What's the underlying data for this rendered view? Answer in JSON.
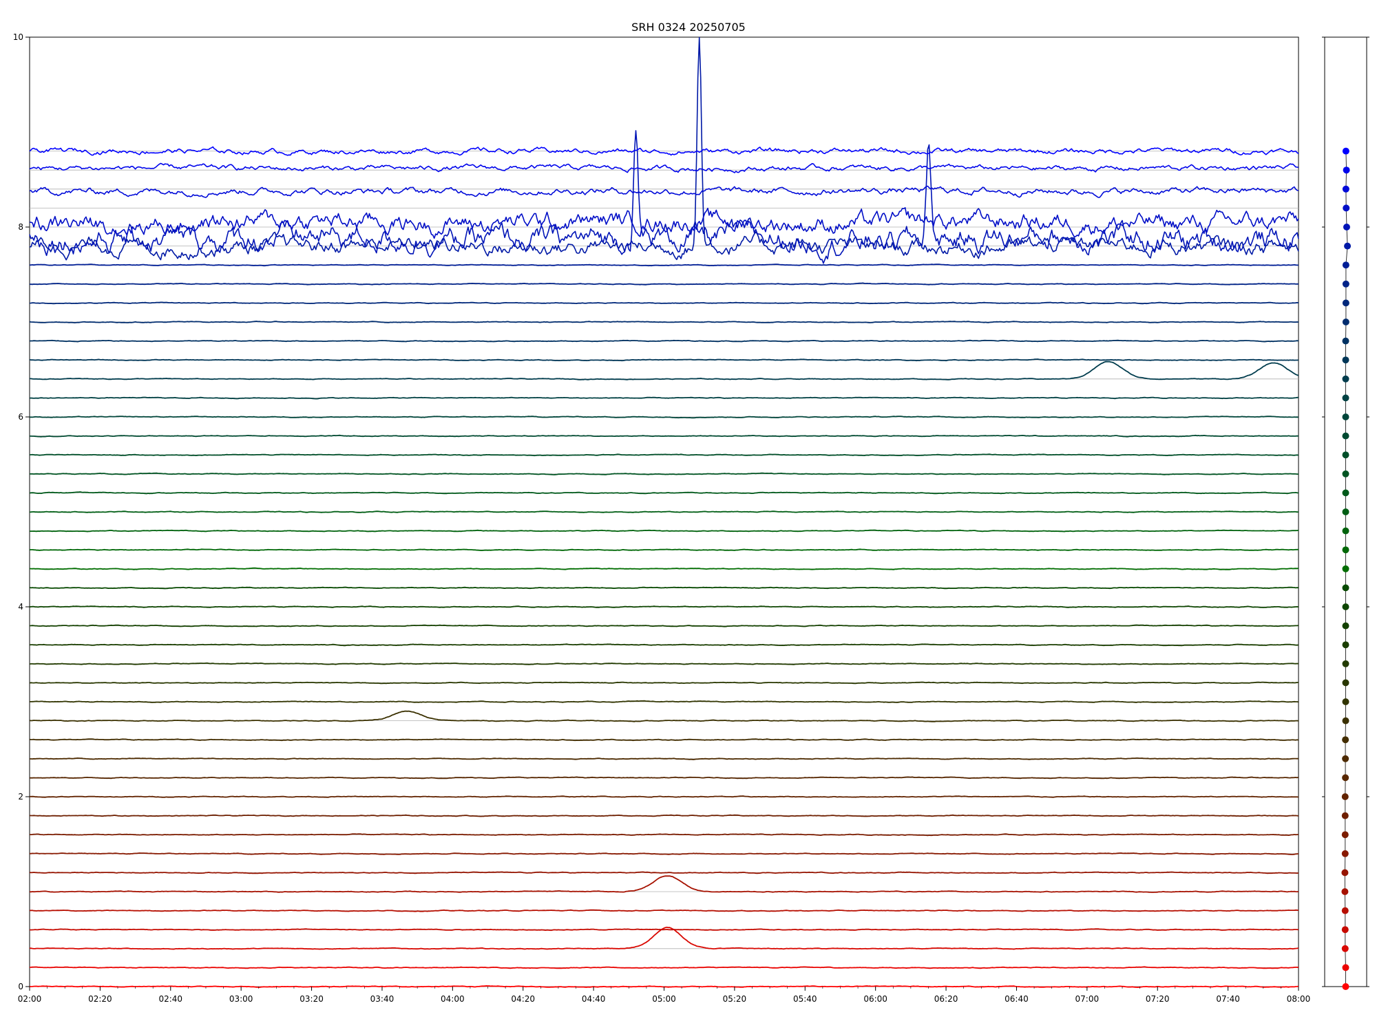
{
  "chart_data": {
    "type": "line",
    "title": "SRH 0324 20250705",
    "xlabel": "",
    "ylabel": "",
    "xlim": [
      "02:00",
      "08:00"
    ],
    "ylim": [
      0,
      10
    ],
    "x_ticks": [
      "02:00",
      "02:20",
      "02:40",
      "03:00",
      "03:20",
      "03:40",
      "04:00",
      "04:20",
      "04:40",
      "05:00",
      "05:20",
      "05:40",
      "06:00",
      "06:20",
      "06:40",
      "07:00",
      "07:20",
      "07:40",
      "08:00"
    ],
    "y_ticks": [
      "0",
      "2",
      "4",
      "6",
      "8",
      "10"
    ],
    "grid": "horizontal lines at trace baselines",
    "legend": "none",
    "series_count": 45,
    "series_spacing": 0.2,
    "baseline_offsets": [
      0.0,
      0.2,
      0.4,
      0.6,
      0.8,
      1.0,
      1.2,
      1.4,
      1.6,
      1.8,
      2.0,
      2.2,
      2.4,
      2.6,
      2.8,
      3.0,
      3.2,
      3.4,
      3.6,
      3.8,
      4.0,
      4.2,
      4.4,
      4.6,
      4.8,
      5.0,
      5.2,
      5.4,
      5.6,
      5.8,
      6.0,
      6.2,
      6.4,
      6.6,
      6.8,
      7.0,
      7.2,
      7.4,
      7.6,
      7.8,
      8.0,
      8.2,
      8.4,
      8.6,
      8.8
    ],
    "color_start": "#ff0000",
    "color_end": "#0000ff",
    "color_mid": "#008000",
    "noisy_series": {
      "39": {
        "amplitude": 0.06,
        "offset": 0.0
      },
      "40": {
        "amplitude": 0.09,
        "offset": -0.12
      },
      "41": {
        "amplitude": 0.07,
        "offset": -0.15
      },
      "42": {
        "amplitude": 0.025,
        "offset": -0.02
      },
      "43": {
        "amplitude": 0.02,
        "offset": 0.02
      },
      "44": {
        "amplitude": 0.02,
        "offset": 0.0
      }
    },
    "events": [
      {
        "series": 39,
        "time": "05:10",
        "value": 10.0
      },
      {
        "series": 40,
        "time": "04:52",
        "value": 9.1
      },
      {
        "series": 40,
        "time": "06:15",
        "value": 9.05
      },
      {
        "series": 32,
        "time": "07:06",
        "value": 6.58
      },
      {
        "series": 32,
        "time": "07:53",
        "value": 6.57
      },
      {
        "series": 14,
        "time": "03:47",
        "value": 2.9
      },
      {
        "series": 2,
        "time": "05:01",
        "value": 0.62
      },
      {
        "series": 5,
        "time": "05:01",
        "value": 1.17
      }
    ],
    "side_panel": {
      "type": "scatter",
      "markers": 45,
      "ylim": [
        0,
        10
      ],
      "x_offsets": [
        0.0,
        0.0,
        -0.1,
        -0.1,
        -0.1,
        -0.15,
        -0.15,
        -0.1,
        -0.1,
        -0.1,
        -0.1,
        -0.05,
        -0.05,
        -0.05,
        0.0,
        0.0,
        0.0,
        0.0,
        0.0,
        0.0,
        0.0,
        0.0,
        0.0,
        0.0,
        0.0,
        0.0,
        0.0,
        0.0,
        0.0,
        0.0,
        0.0,
        0.0,
        0.0,
        0.0,
        0.0,
        0.05,
        0.05,
        0.05,
        0.05,
        0.35,
        0.2,
        0.1,
        0.05,
        0.15,
        0.05
      ]
    }
  }
}
